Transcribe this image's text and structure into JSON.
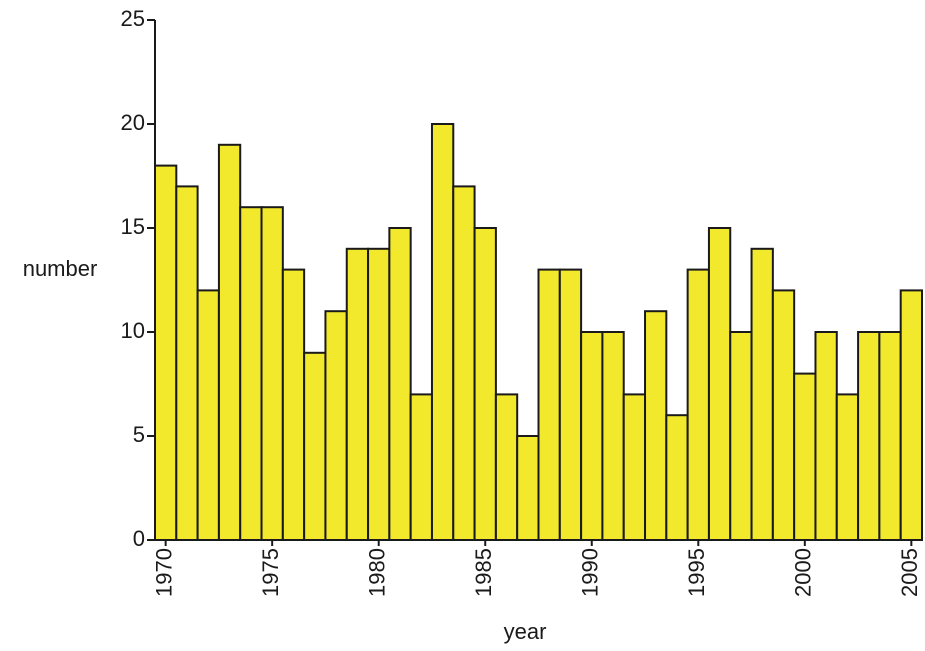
{
  "chart_data": {
    "type": "bar",
    "x_label": "year",
    "y_label": "number",
    "x": [
      1970,
      1971,
      1972,
      1973,
      1974,
      1975,
      1976,
      1977,
      1978,
      1979,
      1980,
      1981,
      1982,
      1983,
      1984,
      1985,
      1986,
      1987,
      1988,
      1989,
      1990,
      1991,
      1992,
      1993,
      1994,
      1995,
      1996,
      1997,
      1998,
      1999,
      2000,
      2001,
      2002,
      2003,
      2004,
      2005
    ],
    "values": [
      18,
      17,
      12,
      19,
      16,
      16,
      13,
      9,
      11,
      14,
      14,
      15,
      7,
      20,
      17,
      15,
      7,
      5,
      13,
      13,
      10,
      10,
      7,
      11,
      6,
      13,
      15,
      10,
      14,
      12,
      8,
      10,
      7,
      10,
      10,
      12
    ],
    "color": "#f2e82c",
    "xlim": [
      1969.5,
      2005.5
    ],
    "xticks": [
      1970,
      1975,
      1980,
      1985,
      1990,
      1995,
      2000,
      2005
    ],
    "ylim": [
      0,
      25
    ],
    "yticks": [
      0,
      5,
      10,
      15,
      20,
      25
    ]
  }
}
